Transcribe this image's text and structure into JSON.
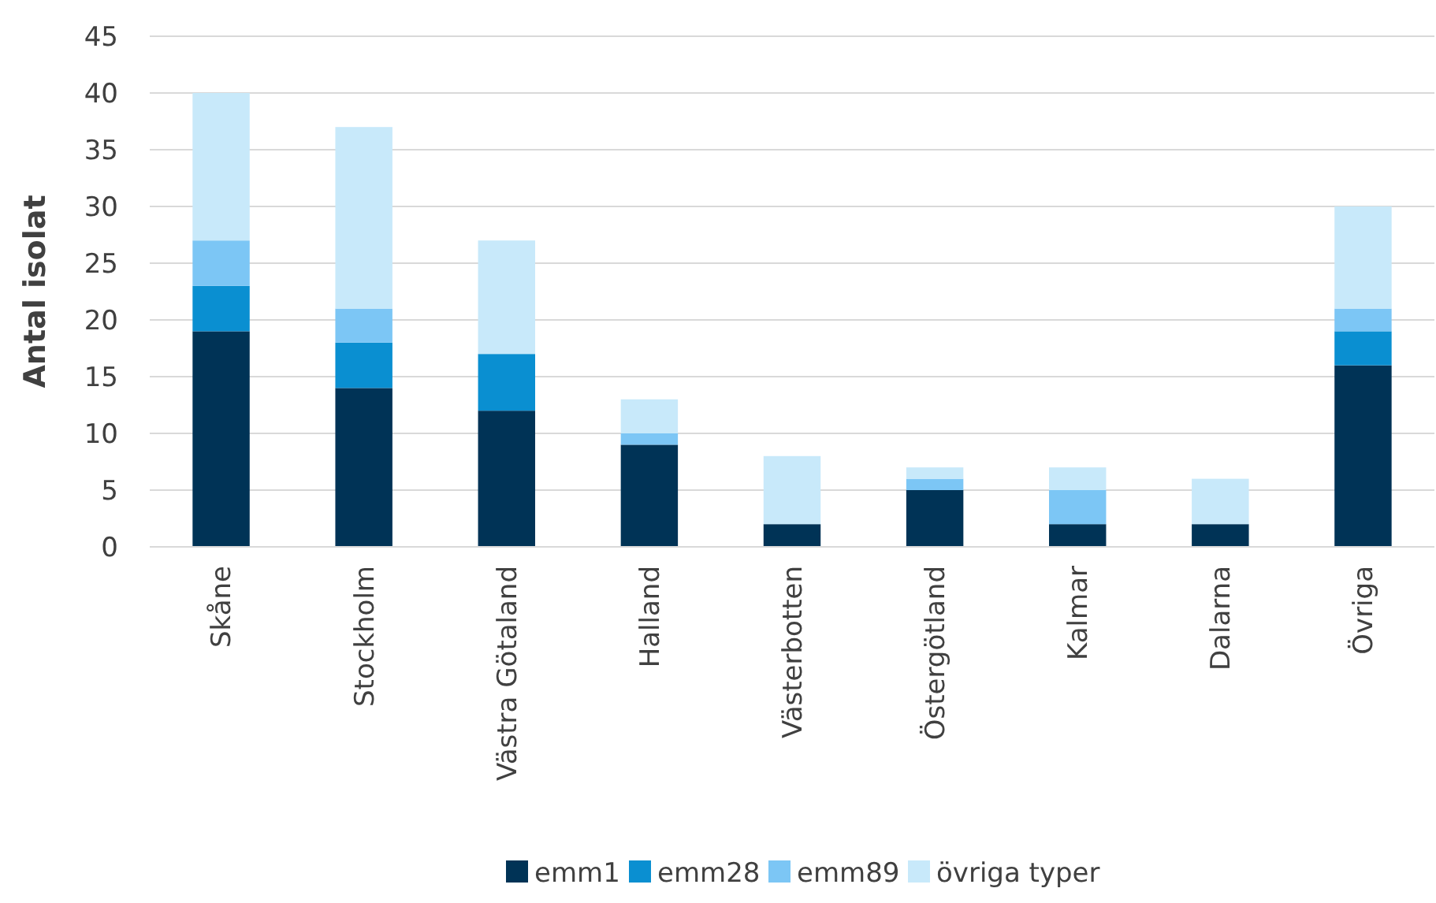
{
  "chart_data": {
    "type": "bar",
    "stacked": true,
    "ylabel": "Antal isolat",
    "categories": [
      "Skåne",
      "Stockholm",
      "Västra Götaland",
      "Halland",
      "Västerbotten",
      "Östergötland",
      "Kalmar",
      "Dalarna",
      "Övriga"
    ],
    "series": [
      {
        "name": "emm1",
        "color": "#003356",
        "values": [
          19,
          14,
          12,
          9,
          2,
          5,
          2,
          2,
          16
        ]
      },
      {
        "name": "emm28",
        "color": "#0a8fd1",
        "values": [
          4,
          4,
          5,
          0,
          0,
          0,
          0,
          0,
          3
        ]
      },
      {
        "name": "emm89",
        "color": "#7cc6f5",
        "values": [
          4,
          3,
          0,
          1,
          0,
          1,
          3,
          0,
          2
        ]
      },
      {
        "name": "övriga typer",
        "color": "#c8e9fa",
        "values": [
          13,
          16,
          10,
          3,
          6,
          1,
          2,
          4,
          9
        ]
      }
    ],
    "ylim": [
      0,
      45
    ],
    "yticks": [
      0,
      5,
      10,
      15,
      20,
      25,
      30,
      35,
      40,
      45
    ],
    "grid": "y",
    "legend": "bottom"
  }
}
